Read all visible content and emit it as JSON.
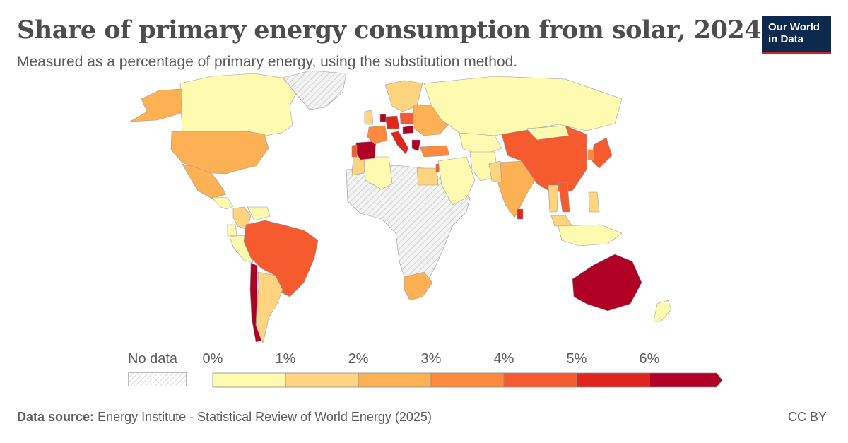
{
  "chart": {
    "title": "Share of primary energy consumption from solar, 2024",
    "subtitle": "Measured as a percentage of primary energy, using the substitution method."
  },
  "logo": {
    "line1": "Our World",
    "line2": "in Data"
  },
  "colors": {
    "no_data": "#d9d9d9",
    "bins": [
      "#fefbb0",
      "#fed57e",
      "#feb054",
      "#fd8a3e",
      "#f65a2f",
      "#e0251e",
      "#b00026"
    ],
    "background": "#ffffff",
    "border": "#8c8c8c"
  },
  "legend": {
    "no_data_label": "No data",
    "ticks": [
      "0%",
      "1%",
      "2%",
      "3%",
      "4%",
      "5%",
      "6%"
    ]
  },
  "chart_data": {
    "type": "choropleth",
    "unit": "%",
    "year": "2024",
    "bins": [
      {
        "min": 0,
        "max": 1,
        "color": "#fefbb0"
      },
      {
        "min": 1,
        "max": 2,
        "color": "#fed57e"
      },
      {
        "min": 2,
        "max": 3,
        "color": "#feb054"
      },
      {
        "min": 3,
        "max": 4,
        "color": "#fd8a3e"
      },
      {
        "min": 4,
        "max": 5,
        "color": "#f65a2f"
      },
      {
        "min": 5,
        "max": 6,
        "color": "#e0251e"
      },
      {
        "min": 6,
        "max": null,
        "color": "#b00026"
      }
    ],
    "regions": [
      {
        "name": "Canada",
        "value": 0.5
      },
      {
        "name": "Alaska (United States)",
        "value": 2.5
      },
      {
        "name": "United States",
        "value": 2.6
      },
      {
        "name": "Mexico",
        "value": 2.8
      },
      {
        "name": "Central America",
        "value": 0.8
      },
      {
        "name": "Colombia",
        "value": 1.5
      },
      {
        "name": "Venezuela",
        "value": 0.1
      },
      {
        "name": "Ecuador",
        "value": 0.1
      },
      {
        "name": "Peru",
        "value": 0.5
      },
      {
        "name": "Brazil",
        "value": 4.6
      },
      {
        "name": "Argentina",
        "value": 1.0
      },
      {
        "name": "Chile",
        "value": 8.5
      },
      {
        "name": "Greenland",
        "value": null
      },
      {
        "name": "Africa (most)",
        "value": null
      },
      {
        "name": "Morocco",
        "value": 1.2
      },
      {
        "name": "Algeria",
        "value": 0.3
      },
      {
        "name": "Egypt",
        "value": 1.2
      },
      {
        "name": "South Africa",
        "value": 2.1
      },
      {
        "name": "Spain",
        "value": 9.0
      },
      {
        "name": "Portugal",
        "value": 4.5
      },
      {
        "name": "France",
        "value": 3.0
      },
      {
        "name": "United Kingdom",
        "value": 1.0
      },
      {
        "name": "Germany",
        "value": 5.5
      },
      {
        "name": "Netherlands",
        "value": 6.2
      },
      {
        "name": "Italy",
        "value": 5.6
      },
      {
        "name": "Greece",
        "value": 8.0
      },
      {
        "name": "Hungary",
        "value": 7.5
      },
      {
        "name": "Poland",
        "value": 4.2
      },
      {
        "name": "Scandinavia",
        "value": 1.0
      },
      {
        "name": "Eastern Europe",
        "value": 2.0
      },
      {
        "name": "Turkey",
        "value": 3.3
      },
      {
        "name": "Russia",
        "value": 0.1
      },
      {
        "name": "Kazakhstan",
        "value": 0.8
      },
      {
        "name": "Middle East",
        "value": 0.8
      },
      {
        "name": "Israel",
        "value": 4.5
      },
      {
        "name": "Iran",
        "value": 0.2
      },
      {
        "name": "India",
        "value": 2.7
      },
      {
        "name": "Pakistan",
        "value": 1.8
      },
      {
        "name": "Sri Lanka",
        "value": 5.5
      },
      {
        "name": "China",
        "value": 4.3
      },
      {
        "name": "Mongolia",
        "value": 0.5
      },
      {
        "name": "Japan",
        "value": 4.8
      },
      {
        "name": "South Korea",
        "value": 3.0
      },
      {
        "name": "Vietnam",
        "value": 4.7
      },
      {
        "name": "Thailand",
        "value": 1.6
      },
      {
        "name": "Malaysia",
        "value": 1.0
      },
      {
        "name": "Indonesia",
        "value": 0.3
      },
      {
        "name": "Philippines",
        "value": 1.5
      },
      {
        "name": "Australia",
        "value": 8.9
      },
      {
        "name": "New Zealand",
        "value": 0.9
      }
    ]
  },
  "footer": {
    "source_label": "Data source:",
    "source_text": "Energy Institute - Statistical Review of World Energy (2025)",
    "license": "CC BY"
  }
}
